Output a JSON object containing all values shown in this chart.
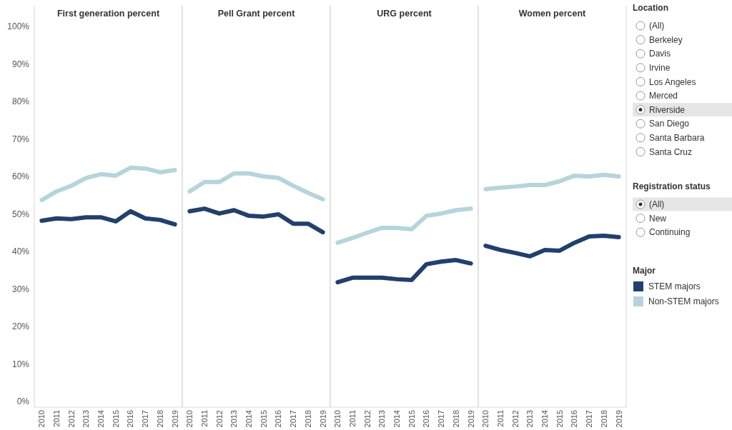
{
  "chart_data": [
    {
      "type": "line",
      "title": "First generation percent",
      "categories": [
        "2010",
        "2011",
        "2012",
        "2013",
        "2014",
        "2015",
        "2016",
        "2017",
        "2018",
        "2019"
      ],
      "ylim": [
        -1.5,
        101.3
      ],
      "yticks": [
        {
          "value": 0,
          "label": "0%"
        },
        {
          "value": 10,
          "label": "10%"
        },
        {
          "value": 20,
          "label": "20%"
        },
        {
          "value": 30,
          "label": "30%"
        },
        {
          "value": 40,
          "label": "40%"
        },
        {
          "value": 50,
          "label": "50%"
        },
        {
          "value": 60,
          "label": "60%"
        },
        {
          "value": 70,
          "label": "70%"
        },
        {
          "value": 80,
          "label": "80%"
        },
        {
          "value": 90,
          "label": "90%"
        },
        {
          "value": 100,
          "label": "100%"
        }
      ],
      "legend": "right",
      "legend_title": "Major",
      "line_style": "solid",
      "marker": "none",
      "series": [
        {
          "name": "STEM majors",
          "color": "#22406b",
          "values": [
            48.2,
            48.8,
            48.6,
            49.1,
            49.1,
            48.0,
            50.7,
            48.8,
            48.4,
            47.2
          ]
        },
        {
          "name": "Non-STEM majors",
          "color": "#b5d5db",
          "values": [
            53.7,
            56.0,
            57.5,
            59.6,
            60.6,
            60.2,
            62.3,
            62.1,
            61.1,
            61.7
          ]
        }
      ]
    },
    {
      "type": "line",
      "title": "Pell Grant percent",
      "categories": [
        "2010",
        "2011",
        "2012",
        "2013",
        "2014",
        "2015",
        "2016",
        "2017",
        "2018",
        "2019"
      ],
      "ylim": [
        -1.5,
        101.3
      ],
      "tick_labels": "x",
      "line_style": "solid",
      "marker": "none",
      "series": [
        {
          "color": "#22406b",
          "values": [
            50.7,
            51.4,
            50.1,
            51.0,
            49.5,
            49.3,
            49.9,
            47.4,
            47.4,
            45.1
          ]
        },
        {
          "color": "#b5d5db",
          "values": [
            56.0,
            58.5,
            58.5,
            60.8,
            60.8,
            60.0,
            59.6,
            57.5,
            55.6,
            53.9
          ]
        }
      ]
    },
    {
      "type": "line",
      "title": "URG percent",
      "categories": [
        "2010",
        "2011",
        "2012",
        "2013",
        "2014",
        "2015",
        "2016",
        "2017",
        "2018",
        "2019"
      ],
      "ylim": [
        -1.5,
        101.3
      ],
      "tick_labels": "x",
      "line_style": "solid",
      "marker": "none",
      "series": [
        {
          "color": "#22406b",
          "values": [
            31.8,
            33.0,
            33.0,
            33.0,
            32.6,
            32.4,
            36.6,
            37.3,
            37.7,
            36.8
          ]
        },
        {
          "color": "#b5d5db",
          "values": [
            42.3,
            43.6,
            45.0,
            46.3,
            46.3,
            45.9,
            49.5,
            50.1,
            51.0,
            51.4
          ]
        }
      ]
    },
    {
      "type": "line",
      "title": "Women percent",
      "categories": [
        "2010",
        "2011",
        "2012",
        "2013",
        "2014",
        "2015",
        "2016",
        "2017",
        "2018",
        "2019"
      ],
      "ylim": [
        -1.5,
        101.3
      ],
      "tick_labels": "x",
      "line_style": "solid",
      "marker": "none",
      "series": [
        {
          "color": "#22406b",
          "values": [
            41.5,
            40.4,
            39.6,
            38.7,
            40.4,
            40.2,
            42.3,
            44.0,
            44.2,
            43.8
          ]
        },
        {
          "color": "#b5d5db",
          "values": [
            56.6,
            57.0,
            57.3,
            57.7,
            57.7,
            58.7,
            60.2,
            60.0,
            60.4,
            60.0
          ]
        }
      ]
    },
    {
      "type": "other",
      "title": "Location",
      "annotations": [
        "(All)",
        "Berkeley",
        "Davis",
        "Irvine",
        "Los Angeles",
        "Merced",
        "Riverside",
        "San Diego",
        "Santa Barbara",
        "Santa Cruz"
      ]
    },
    {
      "type": "other",
      "title": "Registration status",
      "annotations": [
        "(All)",
        "New",
        "Continuing"
      ]
    }
  ]
}
